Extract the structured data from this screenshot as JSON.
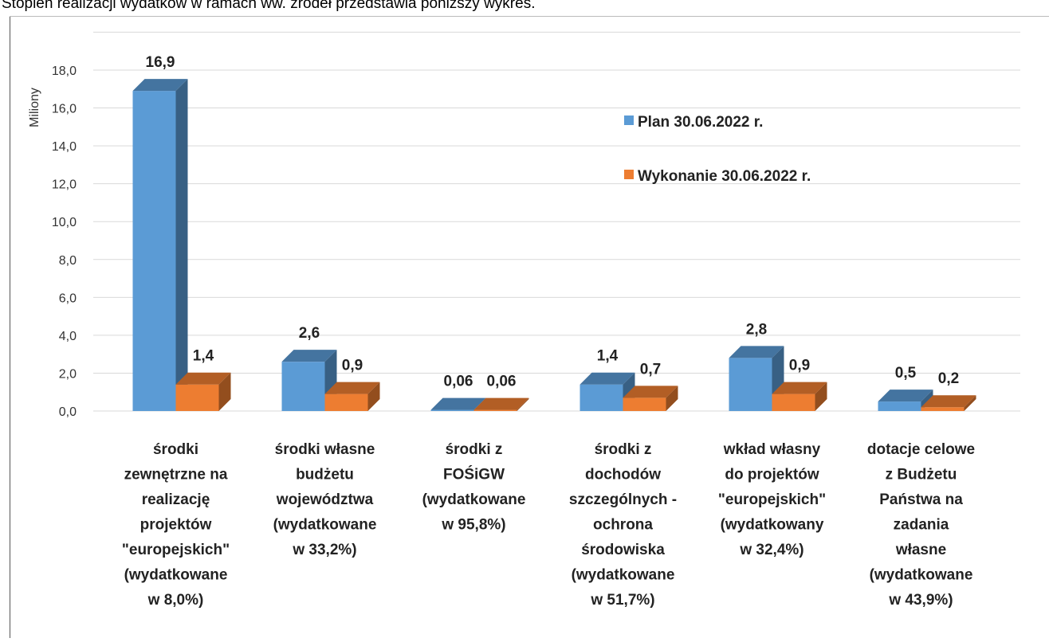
{
  "caption": "Stopień realizacji wydatków w ramach ww. źródeł przedstawia poniższy wykres.",
  "chart_data": {
    "type": "bar3d",
    "y_axis_label": "Miliony",
    "categories": [
      [
        "środki",
        "zewnętrzne na",
        "realizację",
        "projektów",
        "\"europejskich\"",
        "(wydatkowane",
        "w 8,0%)"
      ],
      [
        "środki własne",
        "budżetu",
        "województwa",
        "(wydatkowane",
        "w 33,2%)"
      ],
      [
        "środki z",
        "FOŚiGW",
        "(wydatkowane",
        "w  95,8%)"
      ],
      [
        "środki z",
        "dochodów",
        "szczególnych -",
        "ochrona",
        "środowiska",
        "(wydatkowane",
        "w 51,7%)"
      ],
      [
        "wkład własny",
        "do projektów",
        "\"europejskich\"",
        "(wydatkowany",
        "w 32,4%)"
      ],
      [
        "dotacje celowe",
        "z Budżetu",
        "Państwa na",
        "zadania",
        "własne",
        "(wydatkowane",
        "w 43,9%)"
      ]
    ],
    "series": [
      {
        "name": "Plan 30.06.2022 r.",
        "color": "#5b9bd5",
        "values": [
          16.9,
          2.6,
          0.06,
          1.4,
          2.8,
          0.5
        ],
        "value_labels": [
          "16,9",
          "2,6",
          "0,06",
          "1,4",
          "2,8",
          "0,5"
        ]
      },
      {
        "name": "Wykonanie 30.06.2022 r.",
        "color": "#ed7d31",
        "values": [
          1.4,
          0.9,
          0.06,
          0.7,
          0.9,
          0.2
        ],
        "value_labels": [
          "1,4",
          "0,9",
          "0,06",
          "0,7",
          "0,9",
          "0,2"
        ]
      }
    ],
    "ylim": [
      0,
      20
    ],
    "yticks": [
      {
        "value": 0,
        "label": "0,0"
      },
      {
        "value": 2,
        "label": "2,0"
      },
      {
        "value": 4,
        "label": "4,0"
      },
      {
        "value": 6,
        "label": "6,0"
      },
      {
        "value": 8,
        "label": "8,0"
      },
      {
        "value": 10,
        "label": "10,0"
      },
      {
        "value": 12,
        "label": "12,0"
      },
      {
        "value": 14,
        "label": "14,0"
      },
      {
        "value": 16,
        "label": "16,0"
      },
      {
        "value": 18,
        "label": "18,0"
      }
    ],
    "grid": true
  }
}
